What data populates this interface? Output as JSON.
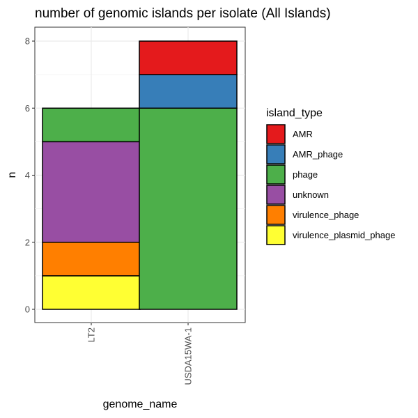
{
  "chart_data": {
    "type": "bar",
    "stacked": true,
    "title": "number of genomic islands per isolate (All Islands)",
    "xlabel": "genome_name",
    "ylabel": "n",
    "categories": [
      "LT2",
      "USDA15WA-1"
    ],
    "ylim": [
      0,
      8
    ],
    "yticks": [
      0,
      2,
      4,
      6,
      8
    ],
    "grid": true,
    "legend_position": "right",
    "legend_title": "island_type",
    "series": [
      {
        "name": "AMR",
        "color": "#E41A1C",
        "values": [
          0,
          1
        ]
      },
      {
        "name": "AMR_phage",
        "color": "#377EB8",
        "values": [
          0,
          1
        ]
      },
      {
        "name": "phage",
        "color": "#4DAF4A",
        "values": [
          1,
          6
        ]
      },
      {
        "name": "unknown",
        "color": "#984EA3",
        "values": [
          3,
          0
        ]
      },
      {
        "name": "virulence_phage",
        "color": "#FF7F00",
        "values": [
          1,
          0
        ]
      },
      {
        "name": "virulence_plasmid_phage",
        "color": "#FFFF33",
        "values": [
          1,
          0
        ]
      }
    ]
  }
}
